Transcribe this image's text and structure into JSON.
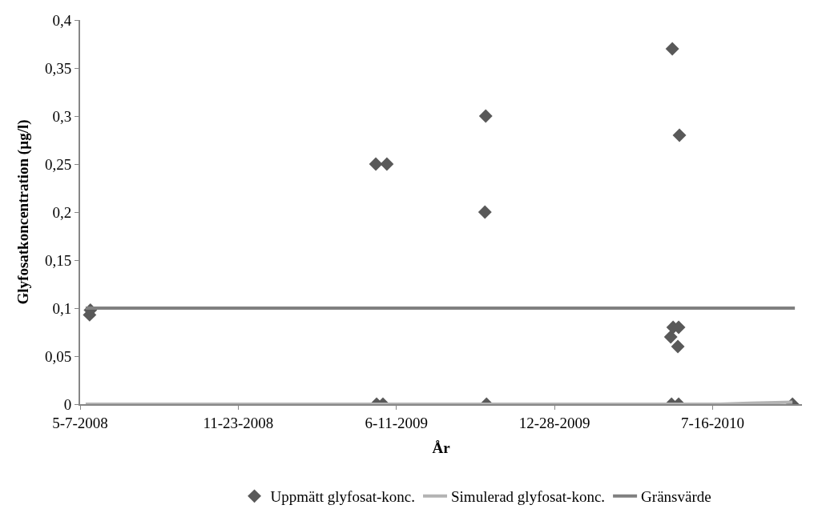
{
  "chart_data": {
    "type": "scatter",
    "xlabel": "År",
    "ylabel": "Glyfosatkoncentration (µg/l)",
    "xlim": [
      "2008-05-07",
      "2010-11-06"
    ],
    "xticks": [
      {
        "value": "2008-05-07",
        "label": "5-7-2008"
      },
      {
        "value": "2008-11-23",
        "label": "11-23-2008"
      },
      {
        "value": "2009-06-11",
        "label": "6-11-2009"
      },
      {
        "value": "2009-12-28",
        "label": "12-28-2009"
      },
      {
        "value": "2010-07-16",
        "label": "7-16-2010"
      }
    ],
    "ylim": [
      0,
      0.4
    ],
    "yticks": [
      0,
      {
        "value": 0.05,
        "label": "0,05"
      },
      {
        "value": 0.1,
        "label": "0,1"
      },
      {
        "value": 0.15,
        "label": "0,15"
      },
      {
        "value": 0.2,
        "label": "0,2"
      },
      {
        "value": 0.25,
        "label": "0,25"
      },
      {
        "value": 0.3,
        "label": "0,3"
      },
      {
        "value": 0.35,
        "label": "0,35"
      },
      {
        "value": 0.4,
        "label": "0,4"
      }
    ],
    "legend": "bottom",
    "series": [
      {
        "name": "Uppmätt glyfosat-konc.",
        "marker": "diamond",
        "color": "#595959",
        "x": [
          "2008-05-19",
          "2008-05-20",
          "2009-05-16",
          "2009-05-30",
          "2009-05-17",
          "2009-05-25",
          "2009-10-02",
          "2009-10-01",
          "2009-10-03",
          "2010-05-26",
          "2010-06-04",
          "2010-05-27",
          "2010-06-03",
          "2010-05-24",
          "2010-06-02",
          "2010-05-25",
          "2010-06-03",
          "2010-10-25"
        ],
        "values": [
          0.093,
          0.098,
          0.25,
          0.25,
          0,
          0,
          0.3,
          0.2,
          0,
          0.37,
          0.28,
          0.08,
          0.08,
          0.07,
          0.06,
          0,
          0,
          0
        ]
      },
      {
        "name": "Simulerad glyfosat-konc.",
        "type": "line",
        "color": "#b3b3b3",
        "x": [
          "2008-05-14",
          "2010-07-25",
          "2010-09-01",
          "2010-10-25"
        ],
        "values": [
          0,
          0,
          0.001,
          0.002
        ]
      },
      {
        "name": "Gränsvärde",
        "type": "line",
        "color": "#808080",
        "x": [
          "2008-05-14",
          "2010-10-28"
        ],
        "values": [
          0.1,
          0.1
        ]
      }
    ]
  }
}
